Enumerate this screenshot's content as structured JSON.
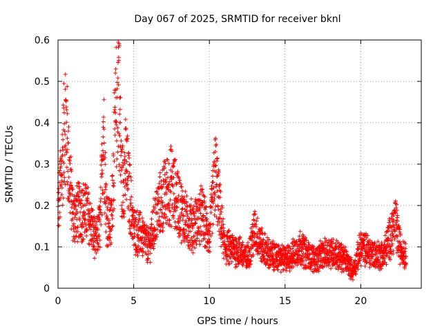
{
  "chart_data": {
    "type": "scatter",
    "title": "Day 067 of 2025, SRMTID for receiver bknl",
    "xlabel": "GPS time / hours",
    "ylabel": "SRMTID / TECUs",
    "xlim": [
      0,
      24
    ],
    "ylim": [
      0,
      0.6
    ],
    "xticks": [
      0,
      5,
      10,
      15,
      20
    ],
    "xtick_labels": [
      "0",
      "5",
      "10",
      "15",
      "20"
    ],
    "yticks": [
      0,
      0.1,
      0.2,
      0.3,
      0.4,
      0.5,
      0.6
    ],
    "ytick_labels": [
      "0",
      "0.1",
      "0.2",
      "0.3",
      "0.4",
      "0.5",
      "0.6"
    ],
    "grid": true,
    "marker": "+",
    "color": "#ff0000",
    "series": [
      {
        "name": "SRMTID",
        "x_range": [
          0,
          23.0
        ],
        "point_spacing_hours": 0.0083,
        "profile": [
          {
            "t": 0.0,
            "y": 0.18
          },
          {
            "t": 0.3,
            "y": 0.31
          },
          {
            "t": 0.5,
            "y": 0.42
          },
          {
            "t": 0.7,
            "y": 0.3
          },
          {
            "t": 1.0,
            "y": 0.17
          },
          {
            "t": 1.5,
            "y": 0.19
          },
          {
            "t": 2.0,
            "y": 0.18
          },
          {
            "t": 2.5,
            "y": 0.11
          },
          {
            "t": 2.8,
            "y": 0.16
          },
          {
            "t": 3.0,
            "y": 0.4
          },
          {
            "t": 3.2,
            "y": 0.18
          },
          {
            "t": 3.5,
            "y": 0.15
          },
          {
            "t": 3.8,
            "y": 0.4
          },
          {
            "t": 4.0,
            "y": 0.52
          },
          {
            "t": 4.2,
            "y": 0.25
          },
          {
            "t": 4.5,
            "y": 0.3
          },
          {
            "t": 5.0,
            "y": 0.14
          },
          {
            "t": 5.5,
            "y": 0.13
          },
          {
            "t": 6.0,
            "y": 0.1
          },
          {
            "t": 6.5,
            "y": 0.18
          },
          {
            "t": 7.0,
            "y": 0.22
          },
          {
            "t": 7.5,
            "y": 0.25
          },
          {
            "t": 8.0,
            "y": 0.2
          },
          {
            "t": 8.5,
            "y": 0.16
          },
          {
            "t": 9.0,
            "y": 0.15
          },
          {
            "t": 9.5,
            "y": 0.18
          },
          {
            "t": 10.0,
            "y": 0.12
          },
          {
            "t": 10.4,
            "y": 0.28
          },
          {
            "t": 10.7,
            "y": 0.18
          },
          {
            "t": 11.0,
            "y": 0.1
          },
          {
            "t": 12.0,
            "y": 0.09
          },
          {
            "t": 12.5,
            "y": 0.07
          },
          {
            "t": 13.0,
            "y": 0.14
          },
          {
            "t": 13.5,
            "y": 0.1
          },
          {
            "t": 14.0,
            "y": 0.08
          },
          {
            "t": 15.0,
            "y": 0.07
          },
          {
            "t": 15.5,
            "y": 0.08
          },
          {
            "t": 16.0,
            "y": 0.1
          },
          {
            "t": 16.5,
            "y": 0.08
          },
          {
            "t": 17.0,
            "y": 0.07
          },
          {
            "t": 17.5,
            "y": 0.08
          },
          {
            "t": 18.0,
            "y": 0.09
          },
          {
            "t": 18.5,
            "y": 0.08
          },
          {
            "t": 19.0,
            "y": 0.07
          },
          {
            "t": 19.5,
            "y": 0.04
          },
          {
            "t": 20.0,
            "y": 0.1
          },
          {
            "t": 20.5,
            "y": 0.09
          },
          {
            "t": 21.0,
            "y": 0.08
          },
          {
            "t": 21.5,
            "y": 0.08
          },
          {
            "t": 22.0,
            "y": 0.13
          },
          {
            "t": 22.3,
            "y": 0.16
          },
          {
            "t": 22.6,
            "y": 0.1
          },
          {
            "t": 23.0,
            "y": 0.08
          }
        ]
      }
    ]
  }
}
